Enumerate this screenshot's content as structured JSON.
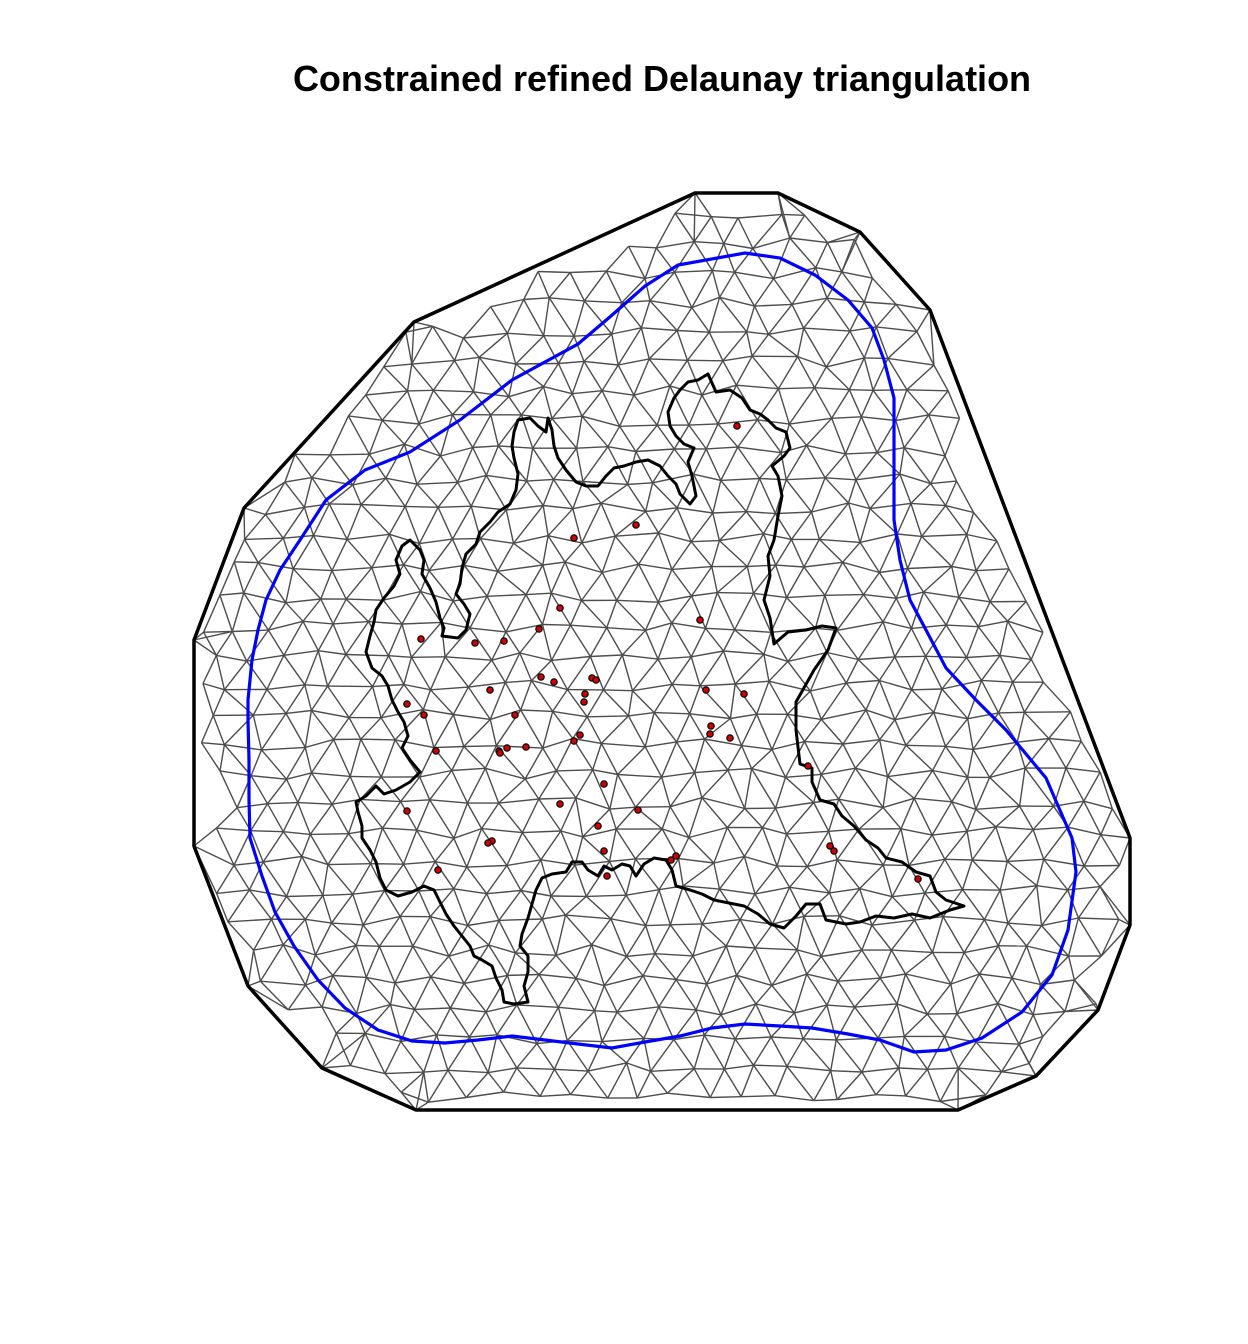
{
  "title": "Constrained refined Delaunay triangulation",
  "colors": {
    "background": "#ffffff",
    "mesh_edges": "#4d4d4d",
    "outer_boundary": "#000000",
    "inner_boundary": "#0000ff",
    "region_outline": "#000000",
    "points_fill": "#cc0000",
    "points_stroke": "#000000"
  },
  "legend": null
}
